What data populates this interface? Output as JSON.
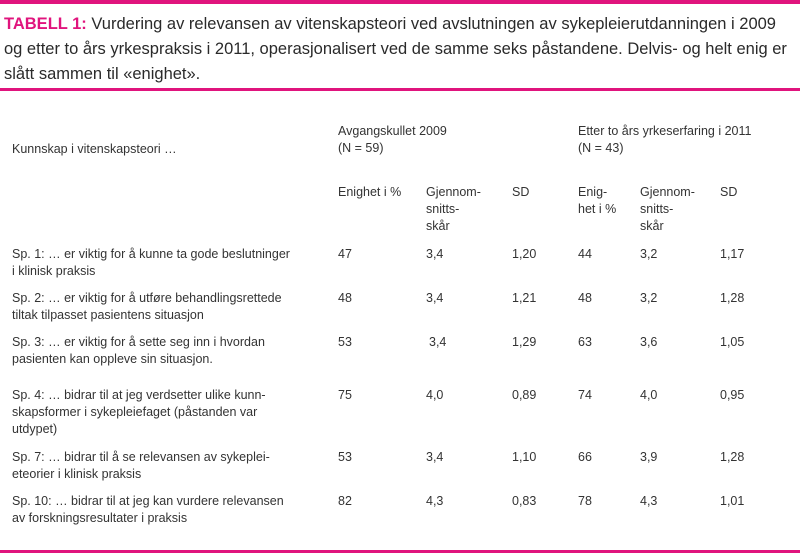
{
  "caption": {
    "label": "TABELL 1:",
    "text": "Vurdering av relevansen av vitenskapsteori ved avslutningen av sykepleierutdanningen i 2009 og etter to års yrkespraksis i 2011, operasjonalisert ved de samme seks påstandene.  Delvis- og helt enig er slått sammen til «enighet»."
  },
  "header": {
    "row_label": "Kunnskap i vitenskapsteori …",
    "group1": {
      "line1": "Avgangskullet 2009",
      "line2": "(N = 59)"
    },
    "group2": {
      "line1": "Etter to års yrkeserfaring i 2011",
      "line2": "(N = 43)"
    },
    "g1_cols": {
      "enighet": "Enighet i %",
      "gjennom1": "Gjennom-",
      "gjennom2": "snitts-",
      "gjennom3": "skår",
      "sd": "SD"
    },
    "g2_cols": {
      "enighet1": "Enig-",
      "enighet2": "het i %",
      "gjennom1": "Gjennom-",
      "gjennom2": "snitts-",
      "gjennom3": "skår",
      "sd": "SD"
    }
  },
  "rows": [
    {
      "lines": [
        "Sp. 1: … er viktig for å kunne ta gode beslutninger",
        "i klinisk praksis"
      ],
      "v": [
        "47",
        "3,4",
        "1,20",
        "44",
        "3,2",
        "1,17"
      ]
    },
    {
      "lines": [
        "Sp. 2: … er viktig for å utføre behandlingsrettede",
        "tiltak tilpasset pasientens situasjon"
      ],
      "v": [
        "48",
        "3,4",
        "1,21",
        "48",
        "3,2",
        "1,28"
      ]
    },
    {
      "lines": [
        "Sp. 3: … er viktig for å sette seg inn i hvordan",
        "pasienten kan oppleve sin situasjon."
      ],
      "v": [
        "53",
        "3,4",
        "1,29",
        "63",
        "3,6",
        "1,05"
      ]
    },
    {
      "lines": [
        "Sp. 4: … bidrar til at jeg verdsetter ulike kunn-",
        "skapsformer i sykepleiefaget (påstanden var",
        "utdypet)"
      ],
      "v": [
        "75",
        "4,0",
        "0,89",
        "74",
        "4,0",
        "0,95"
      ]
    },
    {
      "lines": [
        "Sp. 7: … bidrar til å se relevansen av sykeplei-",
        "eteorier i klinisk praksis"
      ],
      "v": [
        "53",
        "3,4",
        "1,10",
        "66",
        "3,9",
        "1,28"
      ]
    },
    {
      "lines": [
        "Sp. 10: … bidrar til at jeg kan vurdere relevansen",
        "av forskningsresultater i praksis"
      ],
      "v": [
        "82",
        "4,3",
        "0,83",
        "78",
        "4,3",
        "1,01"
      ]
    }
  ]
}
